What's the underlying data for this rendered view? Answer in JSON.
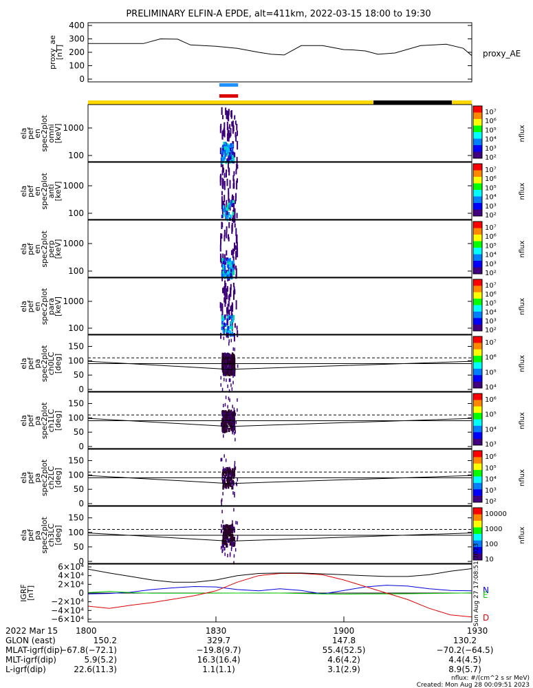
{
  "title": "PRELIMINARY ELFIN-A EPDE, alt=411km, 2022-03-15 18:00 to 19:30",
  "chart_data": [
    {
      "type": "line",
      "panel": "proxy_ae",
      "ylabel_lines": [
        "proxy_ae",
        "[nT]"
      ],
      "right_label": "proxy_AE",
      "y_ticks": [
        "400",
        "300",
        "200",
        "100",
        "0"
      ],
      "ylim": [
        0,
        400
      ],
      "x": [
        0,
        10,
        13,
        17,
        21,
        24,
        30,
        35,
        40,
        43,
        46,
        50,
        55,
        60,
        62,
        65,
        68,
        72,
        78,
        84,
        88,
        90
      ],
      "values": [
        265,
        265,
        265,
        300,
        298,
        255,
        245,
        230,
        200,
        185,
        180,
        250,
        250,
        220,
        218,
        210,
        185,
        195,
        250,
        260,
        230,
        175
      ]
    },
    {
      "type": "heatmap",
      "panel": "omni",
      "ylabel_lines": [
        "ela",
        "pef",
        "en",
        "spec2plot",
        "omni",
        "[keV]"
      ],
      "y_ticks": [
        "1000",
        "100"
      ],
      "colorbar": {
        "label": "nflux",
        "ticks": [
          "10⁷",
          "10⁶",
          "10⁵",
          "10⁴",
          "10³",
          "10²"
        ]
      }
    },
    {
      "type": "heatmap",
      "panel": "anti",
      "ylabel_lines": [
        "ela",
        "pef",
        "en",
        "spec2plot",
        "anti",
        "[keV]"
      ],
      "y_ticks": [
        "1000",
        "100"
      ],
      "colorbar": {
        "label": "nflux",
        "ticks": [
          "10⁷",
          "10⁶",
          "10⁵",
          "10⁴",
          "10³",
          "10²"
        ]
      }
    },
    {
      "type": "heatmap",
      "panel": "perp",
      "ylabel_lines": [
        "ela",
        "pef",
        "en",
        "spec2plot",
        "perp",
        "[keV]"
      ],
      "y_ticks": [
        "1000",
        "100"
      ],
      "colorbar": {
        "label": "nflux",
        "ticks": [
          "10⁷",
          "10⁶",
          "10⁵",
          "10⁴",
          "10³",
          "10²"
        ]
      }
    },
    {
      "type": "heatmap",
      "panel": "para",
      "ylabel_lines": [
        "ela",
        "pef",
        "en",
        "spec2plot",
        "para",
        "[keV]"
      ],
      "y_ticks": [
        "1000",
        "100"
      ],
      "colorbar": {
        "label": "nflux",
        "ticks": [
          "10⁷",
          "10⁶",
          "10⁵",
          "10⁴",
          "10³",
          "10²"
        ]
      }
    },
    {
      "type": "heatmap",
      "panel": "ch0LC",
      "ylabel_lines": [
        "ela",
        "pef",
        "pa",
        "spec2plot",
        "ch0LC",
        "[deg]"
      ],
      "y_ticks": [
        "150",
        "100",
        "50",
        "0"
      ],
      "ylim": [
        0,
        180
      ],
      "colorbar": {
        "label": "nflux",
        "ticks": [
          "10⁷",
          "10⁶",
          "10⁵",
          "10⁴"
        ]
      }
    },
    {
      "type": "heatmap",
      "panel": "ch1LC",
      "ylabel_lines": [
        "ela",
        "pef",
        "pa",
        "spec2plot",
        "ch1LC",
        "[deg]"
      ],
      "y_ticks": [
        "150",
        "100",
        "50",
        "0"
      ],
      "ylim": [
        0,
        180
      ],
      "colorbar": {
        "label": "nflux",
        "ticks": [
          "10⁶",
          "10⁵",
          "10⁴",
          "10³"
        ]
      }
    },
    {
      "type": "heatmap",
      "panel": "ch2LC",
      "ylabel_lines": [
        "ela",
        "pef",
        "pa",
        "spec2plot",
        "ch2LC",
        "[deg]"
      ],
      "y_ticks": [
        "150",
        "100",
        "50",
        "0"
      ],
      "ylim": [
        0,
        180
      ],
      "colorbar": {
        "label": "nflux",
        "ticks": [
          "10⁶",
          "10⁵",
          "10⁴",
          "10³",
          "10²"
        ]
      }
    },
    {
      "type": "heatmap",
      "panel": "ch3LC",
      "ylabel_lines": [
        "ela",
        "pef",
        "pa",
        "spec2plot",
        "ch3LC",
        "[deg]"
      ],
      "y_ticks": [
        "150",
        "100",
        "50",
        "0"
      ],
      "ylim": [
        0,
        180
      ],
      "colorbar": {
        "label": "nflux",
        "ticks": [
          "10000",
          "1000",
          "100",
          "10"
        ]
      }
    },
    {
      "type": "line",
      "panel": "IGRF",
      "ylabel_lines": [
        "IGRF",
        "[nT]"
      ],
      "y_ticks": [
        "6×10⁴",
        "4×10⁴",
        "2×10⁴",
        "0",
        "−2×10⁴",
        "−4×10⁴",
        "−6×10⁴"
      ],
      "ylim": [
        -60000,
        60000
      ],
      "x": [
        0,
        5,
        10,
        15,
        20,
        25,
        30,
        35,
        40,
        45,
        50,
        55,
        60,
        65,
        70,
        75,
        80,
        85,
        90
      ],
      "series": [
        {
          "name": "N",
          "color": "#0000dd",
          "values": [
            -2000,
            -1000,
            2000,
            8000,
            12000,
            15000,
            14000,
            8000,
            5000,
            10000,
            6000,
            -2000,
            6000,
            14000,
            18000,
            16000,
            10000,
            6000,
            5000
          ]
        },
        {
          "name": "E",
          "color": "#00cc00",
          "values": [
            1000,
            4000,
            1000,
            -500,
            -500,
            -500,
            -200,
            0,
            100,
            0,
            -1000,
            -2000,
            -2500,
            -2000,
            -2000,
            -1500,
            -1000,
            -500,
            500
          ]
        },
        {
          "name": "D",
          "color": "#dd0000",
          "values": [
            -30000,
            -35000,
            -28000,
            -22000,
            -14000,
            -6000,
            5000,
            25000,
            40000,
            45000,
            45000,
            42000,
            30000,
            15000,
            0,
            -15000,
            -35000,
            -50000,
            -55000
          ]
        },
        {
          "name": "",
          "color": "#000000",
          "values": [
            55000,
            46000,
            38000,
            30000,
            25000,
            25000,
            30000,
            40000,
            45000,
            46000,
            46000,
            44000,
            42000,
            40000,
            38000,
            38000,
            42000,
            50000,
            56000
          ]
        }
      ],
      "legend": [
        "N",
        "E",
        "D"
      ]
    }
  ],
  "x_ticks": [
    "1800",
    "1830",
    "1900",
    "1930"
  ],
  "footer": {
    "date": "2022 Mar 15",
    "rows": [
      {
        "label": "GLON (east)",
        "v": [
          "150.2",
          "329.7",
          "147.8",
          "130.2"
        ]
      },
      {
        "label": "MLAT-igrf(dip)",
        "v": [
          "−67.8(−72.1)",
          "−19.8(9.7)",
          "55.4(52.5)",
          "−70.2(−64.5)"
        ]
      },
      {
        "label": "MLT-igrf(dip)",
        "v": [
          "5.9(5.2)",
          "16.3(16.4)",
          "4.6(4.2)",
          "4.4(4.5)"
        ]
      },
      {
        "label": "L-igrf(dip)",
        "v": [
          "22.6(11.3)",
          "1.1(1.1)",
          "3.1(2.9)",
          "8.9(5.7)"
        ]
      }
    ],
    "units": "nflux: #/(cm^2 s sr MeV)",
    "created": "Created: Mon Aug 28 00:09:51 2023"
  },
  "side_stamp": "Sun Aug 27 17:08:51 2023",
  "colors": {
    "sci_blue": "#1e90ff",
    "sci_red": "#dd0000",
    "yellow_bar": "#ffd700",
    "black_bar": "#000000"
  }
}
